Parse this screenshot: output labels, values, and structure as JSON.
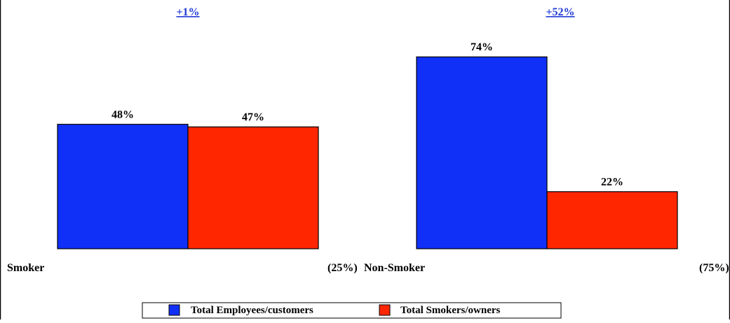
{
  "chart_data": {
    "type": "bar",
    "categories": [
      "Smoker",
      "Non-Smoker"
    ],
    "category_suffixes": [
      "(25%)",
      "(75%)"
    ],
    "differences": [
      "+1%",
      "+52%"
    ],
    "series": [
      {
        "name": "Total Employees/customers",
        "values": [
          48,
          74
        ],
        "labels": [
          "48%",
          "74%"
        ],
        "color": "#1030f8"
      },
      {
        "name": "Total Smokers/owners",
        "values": [
          47,
          22
        ],
        "labels": [
          "47%",
          "22%"
        ],
        "color": "#ff2600"
      }
    ],
    "ylim": [
      0,
      100
    ],
    "grid": false,
    "legend_position": "bottom"
  }
}
